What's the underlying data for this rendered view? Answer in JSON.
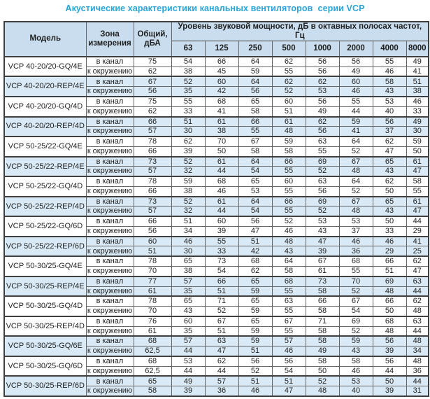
{
  "page_title": "Акустические характеристики канальных вентиляторов  серии VCP",
  "colors": {
    "title": "#2aa5da",
    "header_bg": "#c9ddef",
    "band_bg": "#d9eaf6",
    "border": "#666666"
  },
  "table": {
    "header": {
      "model": "Модель",
      "zone": "Зона измерения",
      "total": "Общий, дБА",
      "spl_group": "Уровень звуковой мощности, дБ в октавных полосах частот, Гц",
      "frequencies": [
        "63",
        "125",
        "250",
        "500",
        "1000",
        "2000",
        "4000",
        "8000"
      ]
    },
    "models": [
      {
        "name": "VCP 40-20/20-GQ/4E",
        "shaded": false,
        "rows": [
          {
            "zone": "в канал",
            "total": "75",
            "levels": [
              "54",
              "66",
              "64",
              "62",
              "56",
              "56",
              "55",
              "49"
            ]
          },
          {
            "zone": "к окружению",
            "total": "62",
            "levels": [
              "38",
              "45",
              "59",
              "55",
              "56",
              "49",
              "46",
              "41"
            ]
          }
        ]
      },
      {
        "name": "VCP 40-20/20-REP/4E",
        "shaded": true,
        "rows": [
          {
            "zone": "в канал",
            "total": "67",
            "levels": [
              "52",
              "60",
              "64",
              "62",
              "62",
              "60",
              "58",
              "51"
            ]
          },
          {
            "zone": "к окружению",
            "total": "56",
            "levels": [
              "35",
              "42",
              "56",
              "52",
              "53",
              "46",
              "43",
              "38"
            ]
          }
        ]
      },
      {
        "name": "VCP 40-20/20-GQ/4D",
        "shaded": false,
        "rows": [
          {
            "zone": "в канал",
            "total": "75",
            "levels": [
              "55",
              "68",
              "65",
              "60",
              "56",
              "55",
              "53",
              "46"
            ]
          },
          {
            "zone": "к окружению",
            "total": "62",
            "levels": [
              "33",
              "41",
              "58",
              "51",
              "49",
              "44",
              "40",
              "33"
            ]
          }
        ]
      },
      {
        "name": "VCP 40-20/20-REP/4D",
        "shaded": true,
        "rows": [
          {
            "zone": "в канал",
            "total": "66",
            "levels": [
              "51",
              "61",
              "66",
              "61",
              "62",
              "59",
              "56",
              "49"
            ]
          },
          {
            "zone": "к окружению",
            "total": "57",
            "levels": [
              "30",
              "38",
              "55",
              "48",
              "56",
              "41",
              "37",
              "30"
            ]
          }
        ]
      },
      {
        "name": "VCP 50-25/22-GQ/4E",
        "shaded": false,
        "rows": [
          {
            "zone": "в канал",
            "total": "78",
            "levels": [
              "62",
              "70",
              "67",
              "59",
              "63",
              "64",
              "62",
              "59"
            ]
          },
          {
            "zone": "к окружению",
            "total": "66",
            "levels": [
              "39",
              "50",
              "58",
              "58",
              "55",
              "52",
              "47",
              "50"
            ]
          }
        ]
      },
      {
        "name": "VCP 50-25/22-REP/4E",
        "shaded": true,
        "rows": [
          {
            "zone": "в канал",
            "total": "73",
            "levels": [
              "52",
              "61",
              "64",
              "66",
              "69",
              "67",
              "65",
              "61"
            ]
          },
          {
            "zone": "к окружению",
            "total": "57",
            "levels": [
              "32",
              "44",
              "54",
              "55",
              "52",
              "48",
              "43",
              "47"
            ]
          }
        ]
      },
      {
        "name": "VCP 50-25/22-GQ/4D",
        "shaded": false,
        "rows": [
          {
            "zone": "в канал",
            "total": "78",
            "levels": [
              "59",
              "68",
              "65",
              "60",
              "63",
              "64",
              "62",
              "58"
            ]
          },
          {
            "zone": "к окружению",
            "total": "66",
            "levels": [
              "38",
              "46",
              "53",
              "55",
              "56",
              "52",
              "50",
              "55"
            ]
          }
        ]
      },
      {
        "name": "VCP 50-25/22-REP/4D",
        "shaded": true,
        "rows": [
          {
            "zone": "в канал",
            "total": "73",
            "levels": [
              "52",
              "61",
              "64",
              "66",
              "69",
              "67",
              "65",
              "61"
            ]
          },
          {
            "zone": "к окружению",
            "total": "57",
            "levels": [
              "32",
              "44",
              "54",
              "55",
              "52",
              "48",
              "43",
              "47"
            ]
          }
        ]
      },
      {
        "name": "VCP 50-25/22-GQ/6D",
        "shaded": false,
        "rows": [
          {
            "zone": "в канал",
            "total": "66",
            "levels": [
              "51",
              "60",
              "56",
              "52",
              "53",
              "53",
              "50",
              "44"
            ]
          },
          {
            "zone": "к окружению",
            "total": "56",
            "levels": [
              "34",
              "39",
              "47",
              "46",
              "43",
              "37",
              "33",
              "29"
            ]
          }
        ]
      },
      {
        "name": "VCP 50-25/22-REP/6D",
        "shaded": true,
        "rows": [
          {
            "zone": "в канал",
            "total": "60",
            "levels": [
              "46",
              "55",
              "51",
              "48",
              "47",
              "46",
              "46",
              "41"
            ]
          },
          {
            "zone": "к окружению",
            "total": "51",
            "levels": [
              "30",
              "33",
              "42",
              "43",
              "39",
              "36",
              "29",
              "25"
            ]
          }
        ]
      },
      {
        "name": "VCP 50-30/25-GQ/4E",
        "shaded": false,
        "rows": [
          {
            "zone": "в канал",
            "total": "78",
            "levels": [
              "65",
              "73",
              "68",
              "64",
              "67",
              "68",
              "66",
              "62"
            ]
          },
          {
            "zone": "к окружению",
            "total": "70",
            "levels": [
              "38",
              "54",
              "62",
              "58",
              "61",
              "55",
              "51",
              "47"
            ]
          }
        ]
      },
      {
        "name": "VCP 50-30/25-REP/4E",
        "shaded": true,
        "rows": [
          {
            "zone": "в канал",
            "total": "77",
            "levels": [
              "57",
              "66",
              "65",
              "68",
              "73",
              "70",
              "69",
              "63"
            ]
          },
          {
            "zone": "к окружению",
            "total": "61",
            "levels": [
              "35",
              "51",
              "59",
              "55",
              "58",
              "52",
              "48",
              "44"
            ]
          }
        ]
      },
      {
        "name": "VCP 50-30/25-GQ/4D",
        "shaded": false,
        "rows": [
          {
            "zone": "в канал",
            "total": "78",
            "levels": [
              "65",
              "71",
              "65",
              "63",
              "66",
              "67",
              "66",
              "62"
            ]
          },
          {
            "zone": "к окружению",
            "total": "70",
            "levels": [
              "43",
              "52",
              "59",
              "55",
              "58",
              "54",
              "50",
              "48"
            ]
          }
        ]
      },
      {
        "name": "VCP 50-30/25-REP/4D",
        "shaded": false,
        "rows": [
          {
            "zone": "в канал",
            "total": "76",
            "levels": [
              "60",
              "67",
              "65",
              "67",
              "71",
              "69",
              "68",
              "63"
            ]
          },
          {
            "zone": "к окружению",
            "total": "61",
            "levels": [
              "35",
              "51",
              "59",
              "55",
              "58",
              "52",
              "48",
              "44"
            ]
          }
        ]
      },
      {
        "name": "VCP 50-30/25-GQ/6E",
        "shaded": true,
        "rows": [
          {
            "zone": "в канал",
            "total": "68",
            "levels": [
              "57",
              "63",
              "59",
              "57",
              "58",
              "59",
              "56",
              "48"
            ]
          },
          {
            "zone": "к окружению",
            "total": "62,5",
            "levels": [
              "44",
              "47",
              "51",
              "46",
              "49",
              "43",
              "39",
              "34"
            ]
          }
        ]
      },
      {
        "name": "VCP 50-30/25-GQ/6D",
        "shaded": false,
        "rows": [
          {
            "zone": "в канал",
            "total": "68",
            "levels": [
              "53",
              "62",
              "56",
              "56",
              "58",
              "58",
              "56",
              "48"
            ]
          },
          {
            "zone": "к окружению",
            "total": "62,5",
            "levels": [
              "44",
              "44",
              "52",
              "54",
              "50",
              "46",
              "44",
              "36"
            ]
          }
        ]
      },
      {
        "name": "VCP 50-30/25-REP/6D",
        "shaded": true,
        "rows": [
          {
            "zone": "в канал",
            "total": "65",
            "levels": [
              "49",
              "57",
              "51",
              "51",
              "52",
              "53",
              "50",
              "44"
            ]
          },
          {
            "zone": "к окружению",
            "total": "58",
            "levels": [
              "39",
              "36",
              "46",
              "47",
              "48",
              "40",
              "39",
              "31"
            ]
          }
        ]
      }
    ]
  }
}
